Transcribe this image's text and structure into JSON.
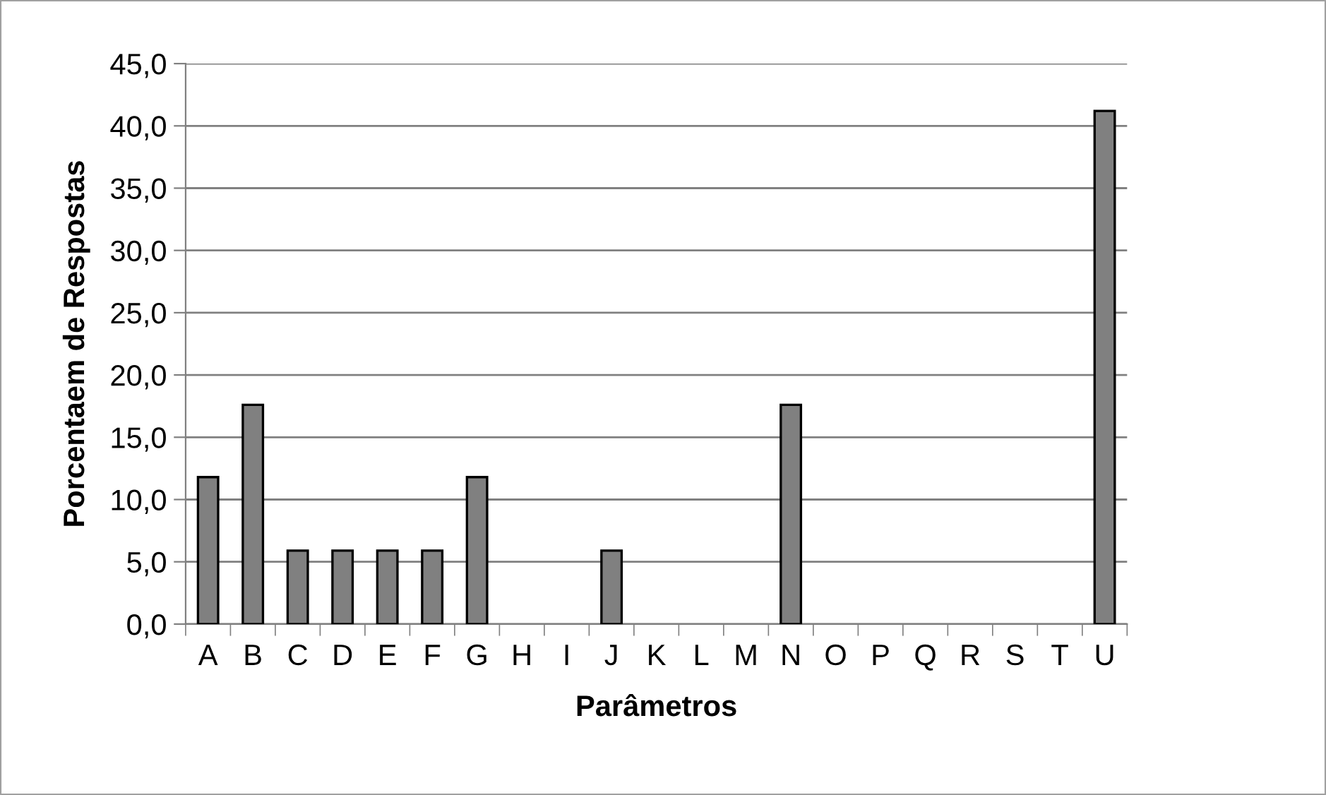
{
  "chart_data": {
    "type": "bar",
    "xlabel": "Parâmetros",
    "ylabel": "Porcentaem de Respostas",
    "categories": [
      "A",
      "B",
      "C",
      "D",
      "E",
      "F",
      "G",
      "H",
      "I",
      "J",
      "K",
      "L",
      "M",
      "N",
      "O",
      "P",
      "Q",
      "R",
      "S",
      "T",
      "U"
    ],
    "values": [
      11.8,
      17.6,
      5.9,
      5.9,
      5.9,
      5.9,
      11.8,
      0,
      0,
      5.9,
      0,
      0,
      0,
      17.6,
      0,
      0,
      0,
      0,
      0,
      0,
      41.2
    ],
    "color": "#808080",
    "ylim": [
      0,
      45
    ],
    "yticks": [
      {
        "value": 0,
        "label": "0,0"
      },
      {
        "value": 5,
        "label": "5,0"
      },
      {
        "value": 10,
        "label": "10,0"
      },
      {
        "value": 15,
        "label": "15,0"
      },
      {
        "value": 20,
        "label": "20,0"
      },
      {
        "value": 25,
        "label": "25,0"
      },
      {
        "value": 30,
        "label": "30,0"
      },
      {
        "value": 35,
        "label": "35,0"
      },
      {
        "value": 40,
        "label": "40,0"
      },
      {
        "value": 45,
        "label": "45,0"
      }
    ],
    "grid": "y",
    "legend": false
  }
}
